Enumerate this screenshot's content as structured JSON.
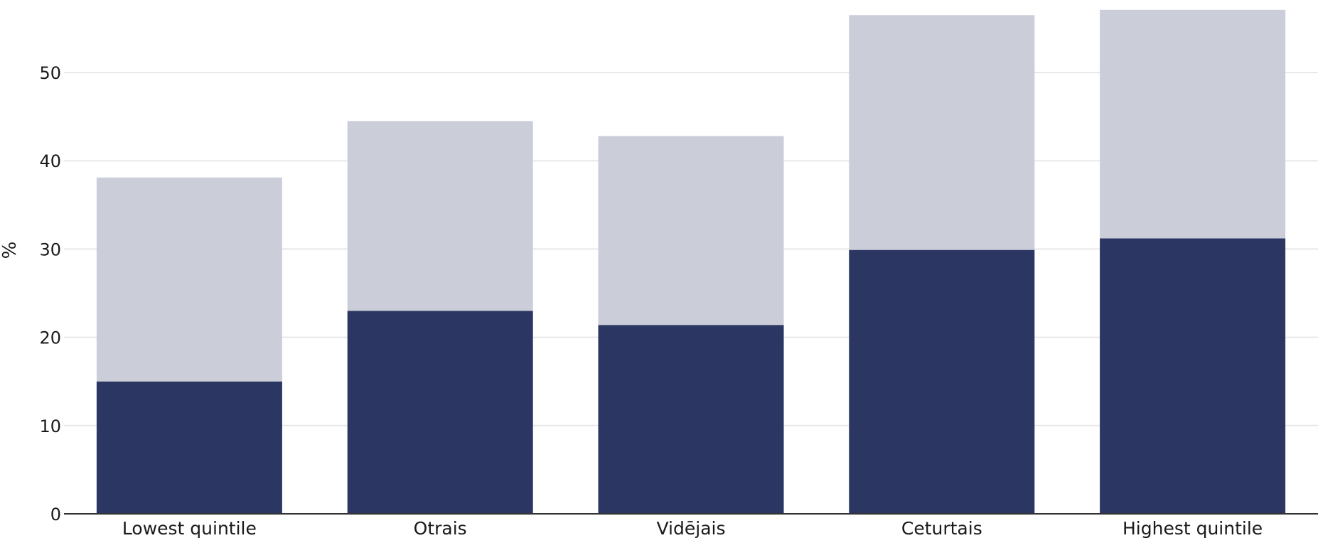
{
  "chart_data": {
    "type": "bar",
    "stacked": true,
    "categories": [
      "Lowest quintile",
      "Otrais",
      "Vidējais",
      "Ceturtais",
      "Highest quintile"
    ],
    "series": [
      {
        "values": [
          15.0,
          23.0,
          21.4,
          29.9,
          31.2
        ],
        "color": "#2b3662"
      },
      {
        "values": [
          23.1,
          21.5,
          21.4,
          26.6,
          25.9
        ],
        "color": "#cbcdd9"
      }
    ],
    "title": "",
    "xlabel": "",
    "ylabel": "%",
    "ylim": [
      0,
      57
    ],
    "yticks": [
      0,
      10,
      20,
      30,
      40,
      50
    ],
    "grid": true,
    "legend": "none"
  }
}
